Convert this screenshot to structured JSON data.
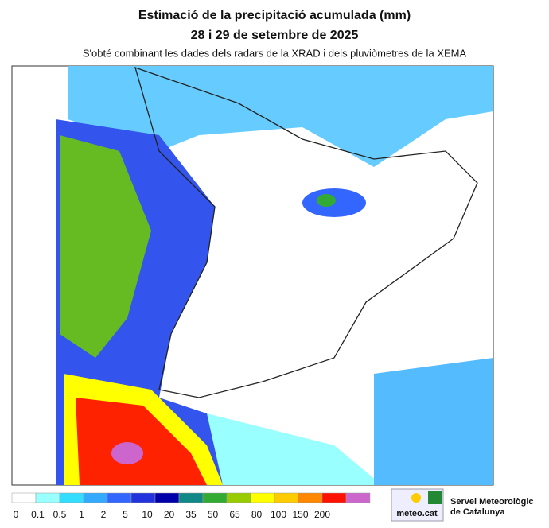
{
  "header": {
    "title": [
      "Estimació de la precipitació acumulada (mm)",
      "28 i 29 de setembre de 2025"
    ],
    "subtitle": "S'obté combinant les dades dels radars de la XRAD i dels pluviòmetres de la XEMA"
  },
  "legend": {
    "labels": [
      "0",
      "0.1",
      "0.5",
      "1",
      "2",
      "5",
      "10",
      "20",
      "35",
      "50",
      "65",
      "80",
      "100",
      "150",
      "200"
    ],
    "colors": [
      "#ffffff",
      "#99ffff",
      "#33ddff",
      "#33aaff",
      "#3366ff",
      "#2233dd",
      "#0000aa",
      "#118888",
      "#33aa33",
      "#99cc00",
      "#ffff00",
      "#ffcc00",
      "#ff8800",
      "#ff1100",
      "#cc66cc"
    ]
  },
  "logo": {
    "brand": "meteo.cat",
    "name": [
      "Servei Meteorològic",
      "de Catalunya"
    ]
  }
}
